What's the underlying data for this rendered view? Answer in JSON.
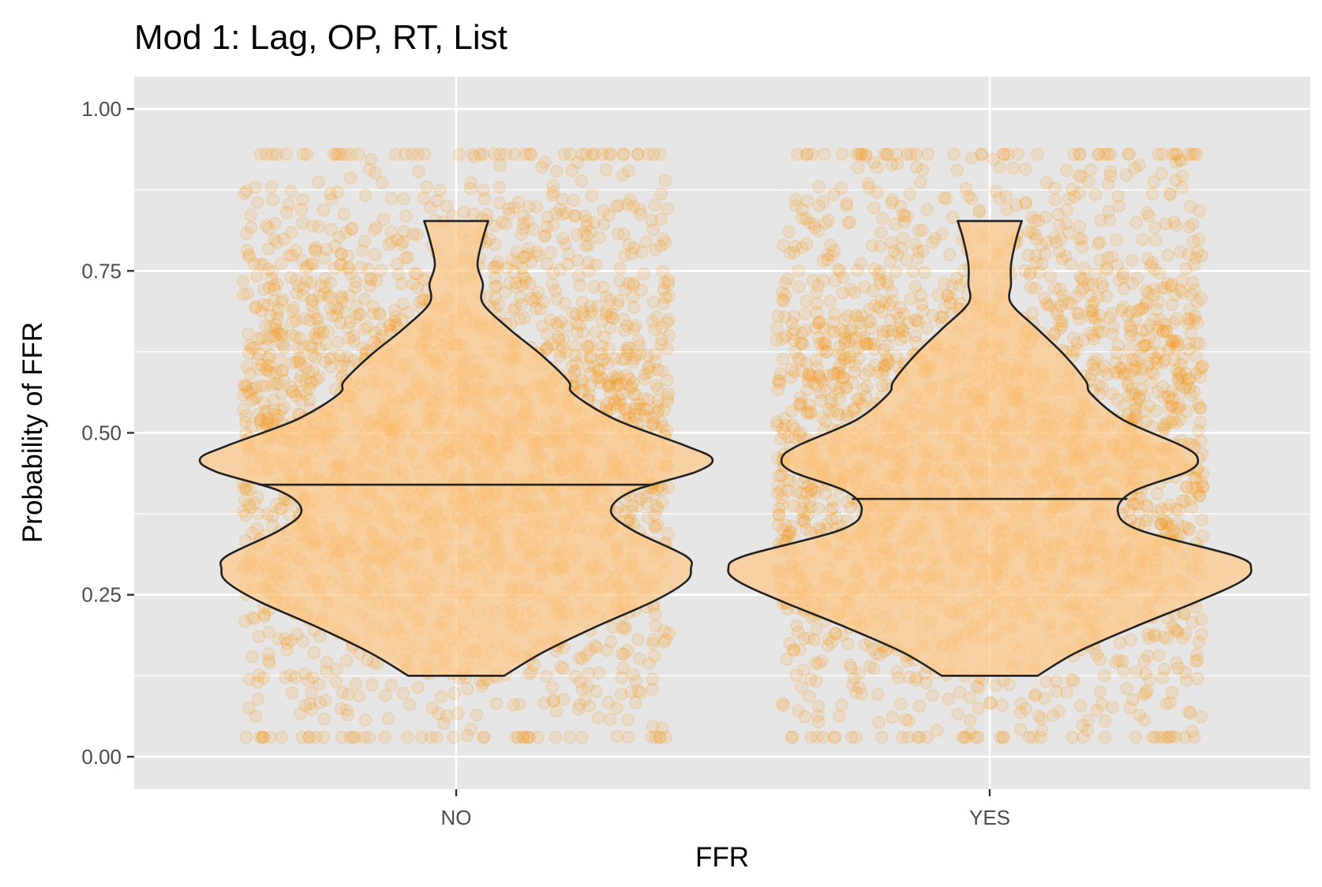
{
  "chart_data": {
    "type": "violin",
    "title": "Mod 1: Lag, OP, RT, List",
    "xlabel": "FFR",
    "ylabel": "Probability of FFR",
    "categories": [
      "NO",
      "YES"
    ],
    "ylim": [
      -0.05,
      1.05
    ],
    "yticks": [
      {
        "value": 0.0,
        "label": "0.00"
      },
      {
        "value": 0.25,
        "label": "0.25"
      },
      {
        "value": 0.5,
        "label": "0.50"
      },
      {
        "value": 0.75,
        "label": "0.75"
      },
      {
        "value": 1.0,
        "label": "1.00"
      }
    ],
    "grid": true,
    "legend": "none",
    "point_color": "#F8960E",
    "violin_fill": "#FCC98A",
    "violin_outline": "#222222",
    "jitter_points": {
      "y_range": [
        0.03,
        0.93
      ],
      "x_spread_fraction": 0.4,
      "points_per_group": 2600
    },
    "violins": [
      {
        "category": "NO",
        "median": 0.42,
        "profile": [
          {
            "y": 0.125,
            "w": 0.09
          },
          {
            "y": 0.16,
            "w": 0.16
          },
          {
            "y": 0.2,
            "w": 0.26
          },
          {
            "y": 0.24,
            "w": 0.37
          },
          {
            "y": 0.27,
            "w": 0.43
          },
          {
            "y": 0.29,
            "w": 0.44
          },
          {
            "y": 0.31,
            "w": 0.43
          },
          {
            "y": 0.35,
            "w": 0.33
          },
          {
            "y": 0.38,
            "w": 0.29
          },
          {
            "y": 0.41,
            "w": 0.33
          },
          {
            "y": 0.44,
            "w": 0.45
          },
          {
            "y": 0.46,
            "w": 0.48
          },
          {
            "y": 0.48,
            "w": 0.43
          },
          {
            "y": 0.52,
            "w": 0.3
          },
          {
            "y": 0.56,
            "w": 0.22
          },
          {
            "y": 0.58,
            "w": 0.21
          },
          {
            "y": 0.62,
            "w": 0.16
          },
          {
            "y": 0.66,
            "w": 0.1
          },
          {
            "y": 0.7,
            "w": 0.05
          },
          {
            "y": 0.73,
            "w": 0.05
          },
          {
            "y": 0.76,
            "w": 0.04
          },
          {
            "y": 0.8,
            "w": 0.05
          },
          {
            "y": 0.827,
            "w": 0.06
          }
        ]
      },
      {
        "category": "YES",
        "median": 0.398,
        "profile": [
          {
            "y": 0.125,
            "w": 0.09
          },
          {
            "y": 0.16,
            "w": 0.16
          },
          {
            "y": 0.2,
            "w": 0.27
          },
          {
            "y": 0.24,
            "w": 0.39
          },
          {
            "y": 0.27,
            "w": 0.47
          },
          {
            "y": 0.29,
            "w": 0.49
          },
          {
            "y": 0.31,
            "w": 0.46
          },
          {
            "y": 0.35,
            "w": 0.28
          },
          {
            "y": 0.38,
            "w": 0.24
          },
          {
            "y": 0.41,
            "w": 0.27
          },
          {
            "y": 0.44,
            "w": 0.37
          },
          {
            "y": 0.46,
            "w": 0.39
          },
          {
            "y": 0.48,
            "w": 0.36
          },
          {
            "y": 0.52,
            "w": 0.25
          },
          {
            "y": 0.56,
            "w": 0.19
          },
          {
            "y": 0.58,
            "w": 0.18
          },
          {
            "y": 0.62,
            "w": 0.14
          },
          {
            "y": 0.66,
            "w": 0.09
          },
          {
            "y": 0.7,
            "w": 0.04
          },
          {
            "y": 0.73,
            "w": 0.04
          },
          {
            "y": 0.76,
            "w": 0.04
          },
          {
            "y": 0.8,
            "w": 0.05
          },
          {
            "y": 0.827,
            "w": 0.06
          }
        ]
      }
    ]
  }
}
